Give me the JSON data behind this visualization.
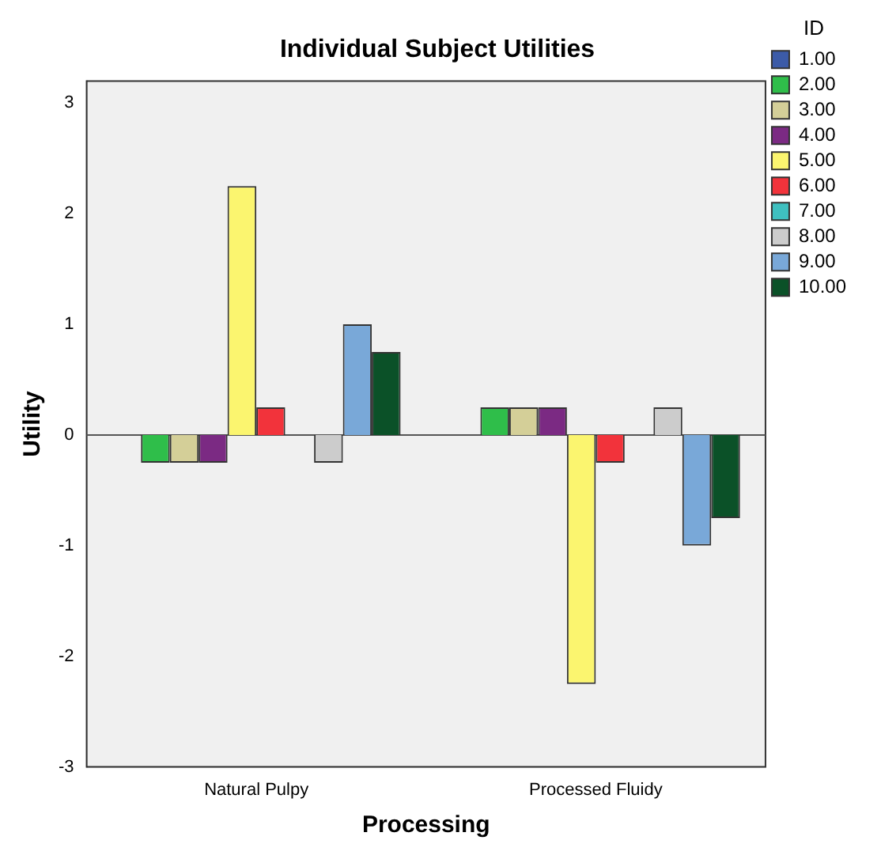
{
  "chart_data": {
    "type": "bar",
    "title": "Individual Subject Utilities",
    "xlabel": "Processing",
    "ylabel": "Utility",
    "legend_title": "ID",
    "categories": [
      "Natural Pulpy",
      "Processed Fluidy"
    ],
    "series": [
      {
        "name": "1.00",
        "color": "#3c5ba8",
        "values": [
          0,
          0
        ]
      },
      {
        "name": "2.00",
        "color": "#2fbe4a",
        "values": [
          -0.25,
          0.25
        ]
      },
      {
        "name": "3.00",
        "color": "#d4cf98",
        "values": [
          -0.25,
          0.25
        ]
      },
      {
        "name": "4.00",
        "color": "#7b2a83",
        "values": [
          -0.25,
          0.25
        ]
      },
      {
        "name": "5.00",
        "color": "#fbf56f",
        "values": [
          2.25,
          -2.25
        ]
      },
      {
        "name": "6.00",
        "color": "#f2333b",
        "values": [
          0.25,
          -0.25
        ]
      },
      {
        "name": "7.00",
        "color": "#3fc0c0",
        "values": [
          0,
          0
        ]
      },
      {
        "name": "8.00",
        "color": "#cccccc",
        "values": [
          -0.25,
          0.25
        ]
      },
      {
        "name": "9.00",
        "color": "#79a8d8",
        "values": [
          1,
          -1
        ]
      },
      {
        "name": "10.00",
        "color": "#0b5128",
        "values": [
          0.75,
          -0.75
        ]
      }
    ],
    "ylim": [
      -3,
      3.2
    ],
    "yticks": [
      -3,
      -2,
      -1,
      0,
      1,
      2,
      3
    ],
    "grid": false,
    "legend": "right",
    "ref_lines": [
      {
        "axis": "y",
        "value": 0,
        "color": "#555555"
      }
    ]
  }
}
